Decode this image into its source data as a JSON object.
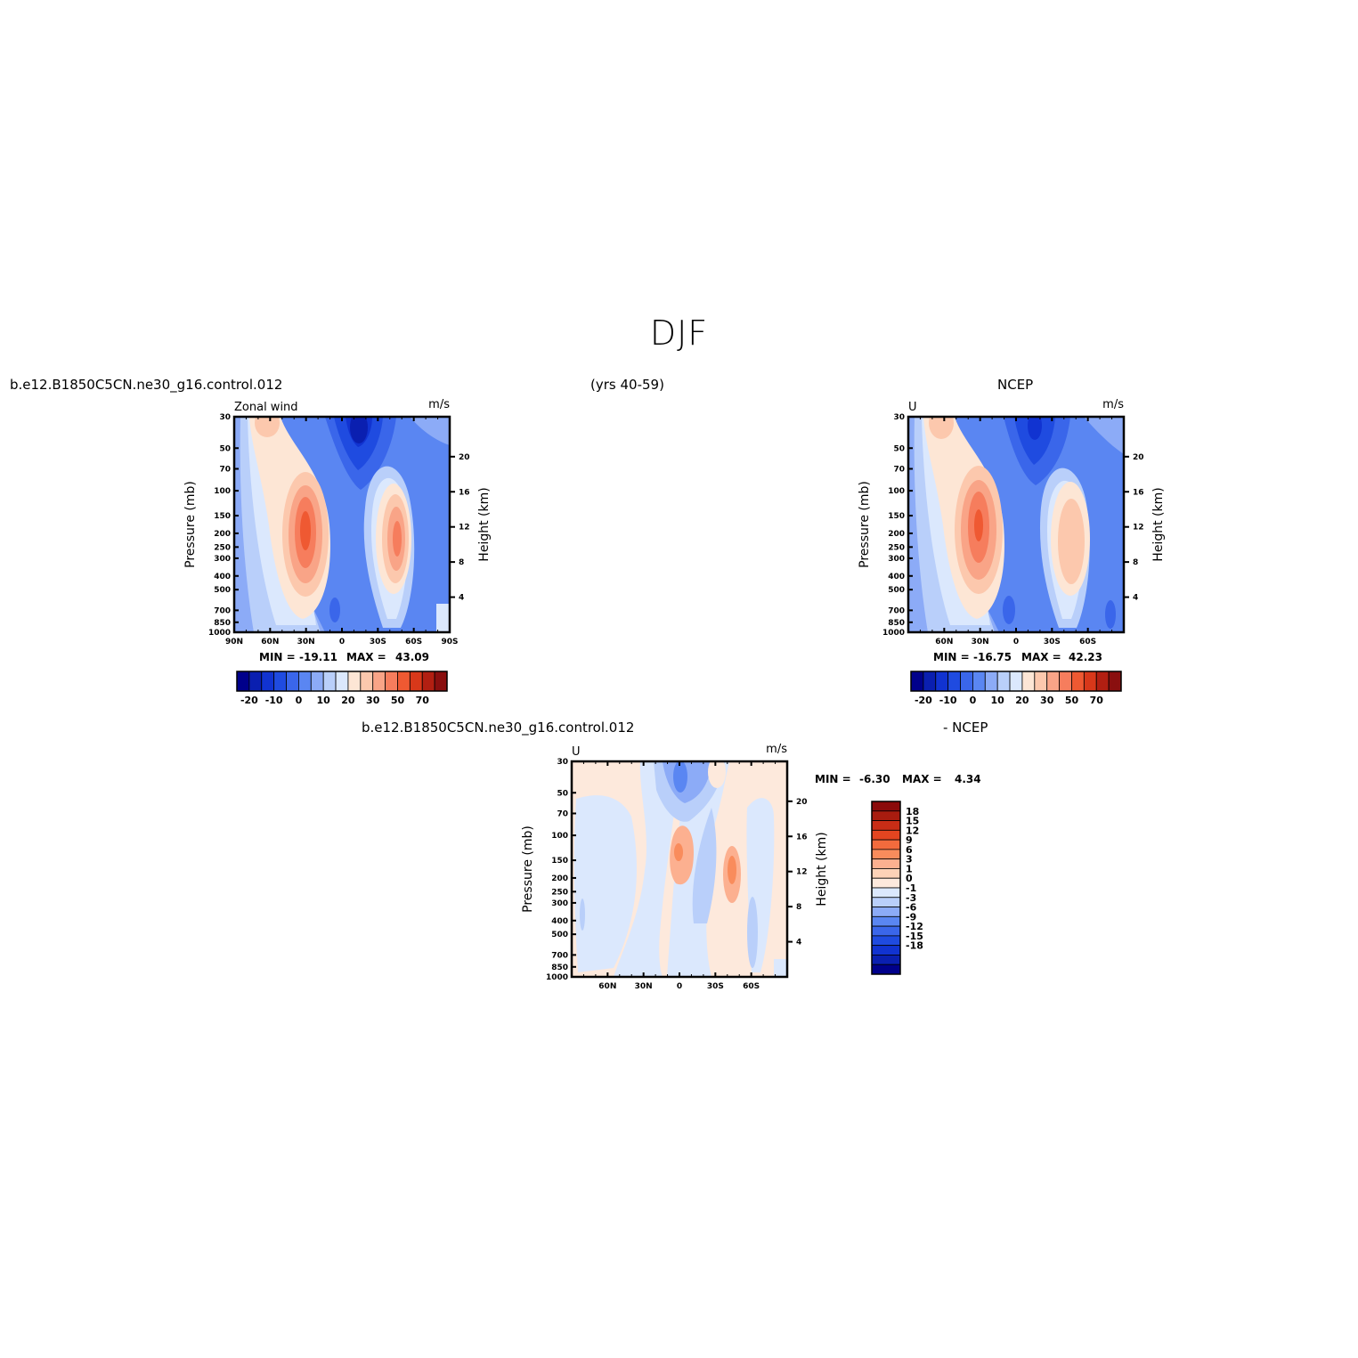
{
  "title": "DJF",
  "panels": {
    "model": {
      "case_name": "b.e12.B1850C5CN.ne30_g16.control.012",
      "years": "(yrs 40-59)",
      "var_label": "Zonal wind",
      "units": "m/s",
      "y_title": "Pressure (mb)",
      "y2_title": "Height (km)",
      "min_label": "MIN = ",
      "min_value": "-19.11",
      "max_label": "MAX = ",
      "max_value": "43.09"
    },
    "obs": {
      "source": "NCEP",
      "var_label": "U",
      "units": "m/s",
      "y_title": "Pressure (mb)",
      "y2_title": "Height (km)",
      "min_label": "MIN = ",
      "min_value": "-16.75",
      "max_label": "MAX = ",
      "max_value": "42.23"
    },
    "diff": {
      "case_name": "b.e12.B1850C5CN.ne30_g16.control.012",
      "minus_label": "- NCEP",
      "var_label": "U",
      "units": "m/s",
      "y_title": "Pressure (mb)",
      "y2_title": "Height (km)",
      "min_label": "MIN = ",
      "min_value": "-6.30",
      "max_label": "MAX = ",
      "max_value": "4.34"
    }
  },
  "chart_data": [
    {
      "type": "heatmap",
      "name": "model",
      "x_ticks": [
        "90N",
        "60N",
        "30N",
        "0",
        "30S",
        "60S",
        "90S"
      ],
      "y_ticks": [
        "30",
        "50",
        "70",
        "100",
        "150",
        "200",
        "250",
        "300",
        "400",
        "500",
        "700",
        "850",
        "1000"
      ],
      "y2_ticks": [
        "20",
        "16",
        "12",
        "8",
        "4"
      ],
      "xlim": [
        90,
        -90
      ],
      "ylim": [
        1000,
        30
      ],
      "y_scale": "log",
      "colorbar_ticks": [
        "-20",
        "-10",
        "0",
        "10",
        "20",
        "30",
        "50",
        "70"
      ],
      "features": [
        {
          "desc": "NH subtropical jet",
          "lat": 30,
          "p": 200,
          "max": 43
        },
        {
          "desc": "SH jet",
          "lat": -45,
          "p": 250,
          "max": 30
        },
        {
          "desc": "tropical easterlies",
          "lat": -15,
          "p": 30,
          "min": -19
        }
      ]
    },
    {
      "type": "heatmap",
      "name": "obs",
      "x_ticks": [
        "60N",
        "30N",
        "0",
        "30S",
        "60S"
      ],
      "y_ticks": [
        "30",
        "50",
        "70",
        "100",
        "150",
        "200",
        "250",
        "300",
        "400",
        "500",
        "700",
        "850",
        "1000"
      ],
      "y2_ticks": [
        "20",
        "16",
        "12",
        "8",
        "4"
      ],
      "xlim": [
        90,
        -90
      ],
      "ylim": [
        1000,
        30
      ],
      "y_scale": "log",
      "colorbar_ticks": [
        "-20",
        "-10",
        "0",
        "10",
        "20",
        "30",
        "50",
        "70"
      ],
      "features": [
        {
          "desc": "NH subtropical jet",
          "lat": 30,
          "p": 200,
          "max": 42
        },
        {
          "desc": "SH jet",
          "lat": -45,
          "p": 250,
          "max": 27
        },
        {
          "desc": "tropical easterlies",
          "lat": -15,
          "p": 30,
          "min": -17
        }
      ]
    },
    {
      "type": "heatmap",
      "name": "diff",
      "x_ticks": [
        "60N",
        "30N",
        "0",
        "30S",
        "60S"
      ],
      "y_ticks": [
        "30",
        "50",
        "70",
        "100",
        "150",
        "200",
        "250",
        "300",
        "400",
        "500",
        "700",
        "850",
        "1000"
      ],
      "y2_ticks": [
        "20",
        "16",
        "12",
        "8",
        "4"
      ],
      "xlim": [
        90,
        -90
      ],
      "ylim": [
        1000,
        30
      ],
      "y_scale": "log",
      "colorbar_ticks": [
        "18",
        "15",
        "12",
        "9",
        "6",
        "3",
        "1",
        "0",
        "-1",
        "-3",
        "-6",
        "-9",
        "-12",
        "-15",
        "-18"
      ],
      "features": [
        {
          "desc": "positive anomaly",
          "lat": 0,
          "p": 150,
          "max": 4.3
        },
        {
          "desc": "positive anomaly",
          "lat": -45,
          "p": 200,
          "max": 4
        },
        {
          "desc": "negative anomaly",
          "lat": 0,
          "p": 50,
          "min": -6.3
        }
      ]
    }
  ],
  "colors": {
    "full_scale": [
      "#00008b",
      "#0a1fb0",
      "#1133d1",
      "#1f4be0",
      "#3a66ea",
      "#5a86f2",
      "#8cabf7",
      "#b9cffa",
      "#dbe8fd",
      "#fde6d5",
      "#fcc8ad",
      "#f9a487",
      "#f67d5d",
      "#ef5932",
      "#d8381a",
      "#b21f12",
      "#8a0f0f"
    ],
    "diff_scale": [
      "#8b0a0a",
      "#a81c0f",
      "#c82d16",
      "#e34520",
      "#f26b3d",
      "#f98c5c",
      "#fcb090",
      "#fdd2b7",
      "#fde9dc",
      "#dbe8fd",
      "#b9cffa",
      "#8cabf7",
      "#5a86f2",
      "#3a66ea",
      "#1f4be0",
      "#1133d1",
      "#0a1fb0",
      "#00008b"
    ]
  }
}
